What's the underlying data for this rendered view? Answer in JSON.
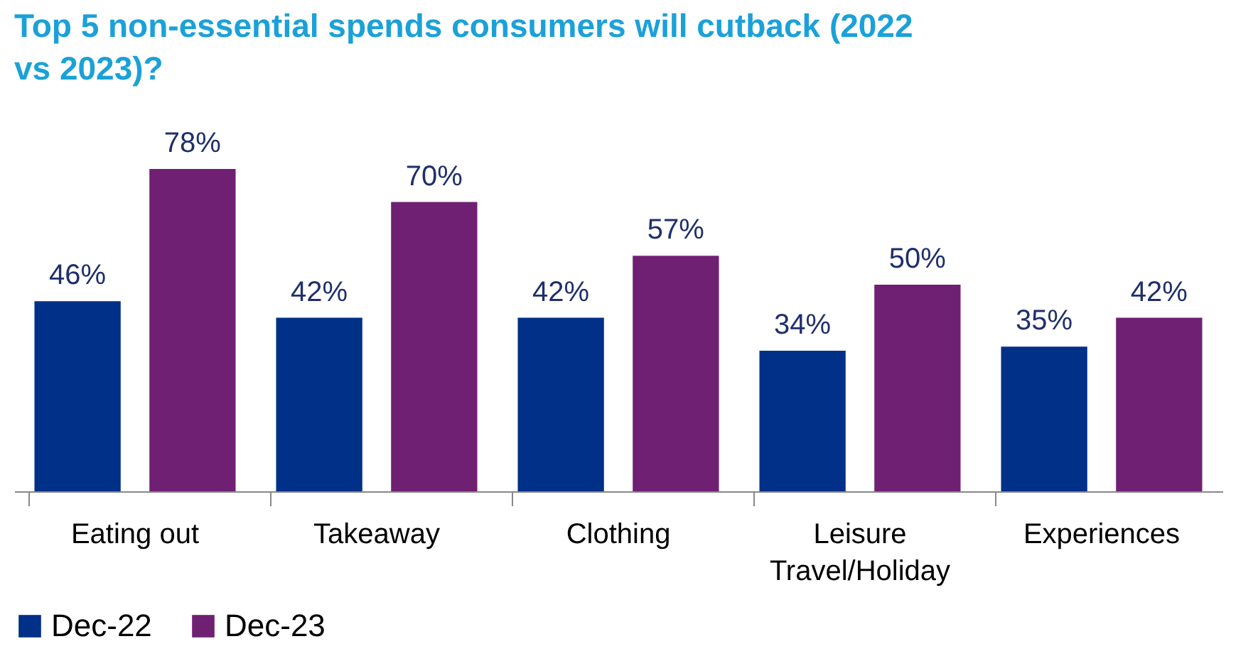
{
  "chart_data": {
    "type": "bar",
    "title": "Top 5 non-essential spends consumers will cutback  (2022 vs 2023)?",
    "categories": [
      "Eating out",
      "Takeaway",
      "Clothing",
      "Leisure Travel/Holiday",
      "Experiences"
    ],
    "series": [
      {
        "name": "Dec-22",
        "color": "#003087",
        "values": [
          46,
          42,
          42,
          34,
          35
        ],
        "value_labels": [
          "46%",
          "42%",
          "42%",
          "34%",
          "35%"
        ]
      },
      {
        "name": "Dec-23",
        "color": "#6f2072",
        "values": [
          78,
          70,
          57,
          50,
          42
        ],
        "value_labels": [
          "78%",
          "70%",
          "57%",
          "50%",
          "42%"
        ]
      }
    ],
    "legend": "bottom",
    "grid": false
  }
}
